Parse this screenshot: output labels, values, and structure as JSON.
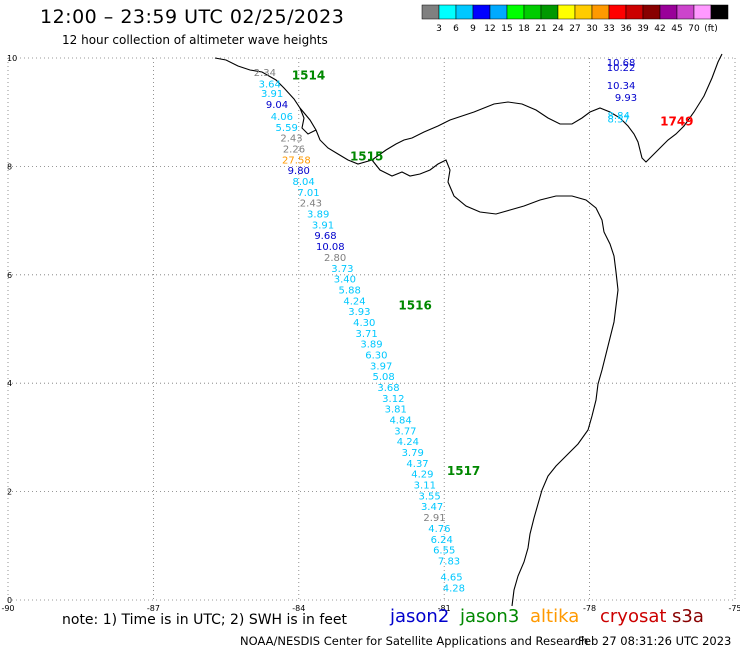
{
  "header": {
    "title": "12:00 – 23:59 UTC 02/25/2023",
    "subtitle": "12 hour collection of altimeter wave heights"
  },
  "legend": {
    "colors": [
      "#808080",
      "#00ffff",
      "#00c8ff",
      "#0000ff",
      "#00aaff",
      "#00ff00",
      "#00cc00",
      "#009900",
      "#ffff00",
      "#ffcc00",
      "#ff9900",
      "#ff0000",
      "#cc0000",
      "#880000",
      "#990099",
      "#cc44cc",
      "#ff99ff",
      "#000000"
    ],
    "labels": [
      "3",
      "6",
      "9",
      "12",
      "15",
      "18",
      "21",
      "24",
      "27",
      "30",
      "33",
      "36",
      "39",
      "42",
      "45",
      "70",
      "(ft)"
    ]
  },
  "map": {
    "lon_range": [
      -90,
      -75
    ],
    "lat_range": [
      0,
      10
    ],
    "x_ticks": [
      "-90",
      "-87",
      "-84",
      "-81",
      "-78",
      "-75"
    ],
    "y_ticks": [
      "0",
      "2",
      "4",
      "6",
      "8",
      "10"
    ],
    "passes": [
      {
        "label": "1514",
        "color": "#008800",
        "lon": -83.8,
        "lat": 9.7
      },
      {
        "label": "1515",
        "color": "#008800",
        "lon": -82.6,
        "lat": 8.2
      },
      {
        "label": "1516",
        "color": "#008800",
        "lon": -81.6,
        "lat": 5.45
      },
      {
        "label": "1517",
        "color": "#008800",
        "lon": -80.6,
        "lat": 2.4
      },
      {
        "label": "1749",
        "color": "#ff0000",
        "lon": -76.2,
        "lat": 8.85
      }
    ],
    "track_main": [
      {
        "v": "2.34",
        "c": "#808080",
        "lon": -84.7,
        "lat": 9.74
      },
      {
        "v": "3.64",
        "c": "#00c8ff",
        "lon": -84.6,
        "lat": 9.53
      },
      {
        "v": "3.91",
        "c": "#00c8ff",
        "lon": -84.55,
        "lat": 9.35
      },
      {
        "v": "9.04",
        "c": "#0000cc",
        "lon": -84.45,
        "lat": 9.15
      },
      {
        "v": "4.06",
        "c": "#00c8ff",
        "lon": -84.35,
        "lat": 8.93
      },
      {
        "v": "5.59",
        "c": "#00c8ff",
        "lon": -84.25,
        "lat": 8.73
      },
      {
        "v": "2.43",
        "c": "#808080",
        "lon": -84.15,
        "lat": 8.53
      },
      {
        "v": "2.26",
        "c": "#808080",
        "lon": -84.1,
        "lat": 8.33
      },
      {
        "v": "27.58",
        "c": "#ff9900",
        "lon": -84.05,
        "lat": 8.13
      },
      {
        "v": "9.80",
        "c": "#0000cc",
        "lon": -84.0,
        "lat": 7.93
      },
      {
        "v": "8.04",
        "c": "#00c8ff",
        "lon": -83.9,
        "lat": 7.73
      },
      {
        "v": "7.01",
        "c": "#00c8ff",
        "lon": -83.8,
        "lat": 7.53
      },
      {
        "v": "2.43",
        "c": "#808080",
        "lon": -83.75,
        "lat": 7.33
      },
      {
        "v": "3.89",
        "c": "#00c8ff",
        "lon": -83.6,
        "lat": 7.13
      },
      {
        "v": "3.91",
        "c": "#00c8ff",
        "lon": -83.5,
        "lat": 6.93
      },
      {
        "v": "9.68",
        "c": "#0000cc",
        "lon": -83.45,
        "lat": 6.73
      },
      {
        "v": "10.08",
        "c": "#0000cc",
        "lon": -83.35,
        "lat": 6.53
      },
      {
        "v": "2.80",
        "c": "#808080",
        "lon": -83.25,
        "lat": 6.33
      },
      {
        "v": "3.73",
        "c": "#00c8ff",
        "lon": -83.1,
        "lat": 6.13
      },
      {
        "v": "3.40",
        "c": "#00c8ff",
        "lon": -83.05,
        "lat": 5.93
      },
      {
        "v": "5.88",
        "c": "#00c8ff",
        "lon": -82.95,
        "lat": 5.73
      },
      {
        "v": "4.24",
        "c": "#00c8ff",
        "lon": -82.85,
        "lat": 5.53
      },
      {
        "v": "3.93",
        "c": "#00c8ff",
        "lon": -82.75,
        "lat": 5.33
      },
      {
        "v": "4.30",
        "c": "#00c8ff",
        "lon": -82.65,
        "lat": 5.13
      },
      {
        "v": "3.71",
        "c": "#00c8ff",
        "lon": -82.6,
        "lat": 4.93
      },
      {
        "v": "3.89",
        "c": "#00c8ff",
        "lon": -82.5,
        "lat": 4.73
      },
      {
        "v": "6.30",
        "c": "#00c8ff",
        "lon": -82.4,
        "lat": 4.53
      },
      {
        "v": "3.97",
        "c": "#00c8ff",
        "lon": -82.3,
        "lat": 4.33
      },
      {
        "v": "5.08",
        "c": "#00c8ff",
        "lon": -82.25,
        "lat": 4.13
      },
      {
        "v": "3.68",
        "c": "#00c8ff",
        "lon": -82.15,
        "lat": 3.93
      },
      {
        "v": "3.12",
        "c": "#00c8ff",
        "lon": -82.05,
        "lat": 3.73
      },
      {
        "v": "3.81",
        "c": "#00c8ff",
        "lon": -82.0,
        "lat": 3.53
      },
      {
        "v": "4.84",
        "c": "#00c8ff",
        "lon": -81.9,
        "lat": 3.33
      },
      {
        "v": "3.77",
        "c": "#00c8ff",
        "lon": -81.8,
        "lat": 3.13
      },
      {
        "v": "4.24",
        "c": "#00c8ff",
        "lon": -81.75,
        "lat": 2.93
      },
      {
        "v": "3.79",
        "c": "#00c8ff",
        "lon": -81.65,
        "lat": 2.73
      },
      {
        "v": "4.37",
        "c": "#00c8ff",
        "lon": -81.55,
        "lat": 2.53
      },
      {
        "v": "4.29",
        "c": "#00c8ff",
        "lon": -81.45,
        "lat": 2.33
      },
      {
        "v": "3.11",
        "c": "#00c8ff",
        "lon": -81.4,
        "lat": 2.13
      },
      {
        "v": "3.55",
        "c": "#00c8ff",
        "lon": -81.3,
        "lat": 1.93
      },
      {
        "v": "3.47",
        "c": "#00c8ff",
        "lon": -81.25,
        "lat": 1.73
      },
      {
        "v": "2.91",
        "c": "#808080",
        "lon": -81.2,
        "lat": 1.53
      },
      {
        "v": "4.76",
        "c": "#00c8ff",
        "lon": -81.1,
        "lat": 1.33
      },
      {
        "v": "6.24",
        "c": "#00c8ff",
        "lon": -81.05,
        "lat": 1.13
      },
      {
        "v": "6.55",
        "c": "#00c8ff",
        "lon": -81.0,
        "lat": 0.93
      },
      {
        "v": "7.83",
        "c": "#00c8ff",
        "lon": -80.9,
        "lat": 0.73
      },
      {
        "v": "4.65",
        "c": "#00c8ff",
        "lon": -80.85,
        "lat": 0.43
      },
      {
        "v": "4.28",
        "c": "#00c8ff",
        "lon": -80.8,
        "lat": 0.23
      }
    ],
    "track_east": [
      {
        "v": "10.68",
        "c": "#0000cc",
        "lon": -77.35,
        "lat": 9.93
      },
      {
        "v": "10.22",
        "c": "#0000cc",
        "lon": -77.35,
        "lat": 9.83
      },
      {
        "v": "10.34",
        "c": "#0000cc",
        "lon": -77.35,
        "lat": 9.5
      },
      {
        "v": "9.93",
        "c": "#0000cc",
        "lon": -77.25,
        "lat": 9.28
      },
      {
        "v": "8.84",
        "c": "#00c8ff",
        "lon": -77.4,
        "lat": 8.95
      },
      {
        "v": "8.57",
        "c": "#00c8ff",
        "lon": -77.4,
        "lat": 8.88
      }
    ]
  },
  "footer": {
    "note": "note:  1) Time is in UTC;  2) SWH is in feet",
    "satellites": [
      {
        "name": "jason2",
        "color": "#0000cc"
      },
      {
        "name": "jason3",
        "color": "#008800"
      },
      {
        "name": "altika",
        "color": "#ff9900"
      },
      {
        "name": "cryosat",
        "color": "#cc0000"
      },
      {
        "name": "s3a",
        "color": "#880000"
      }
    ],
    "credit": "NOAA/NESDIS Center for Satellite Applications and Research",
    "timestamp": "Feb 27 08:31:26 UTC 2023"
  }
}
